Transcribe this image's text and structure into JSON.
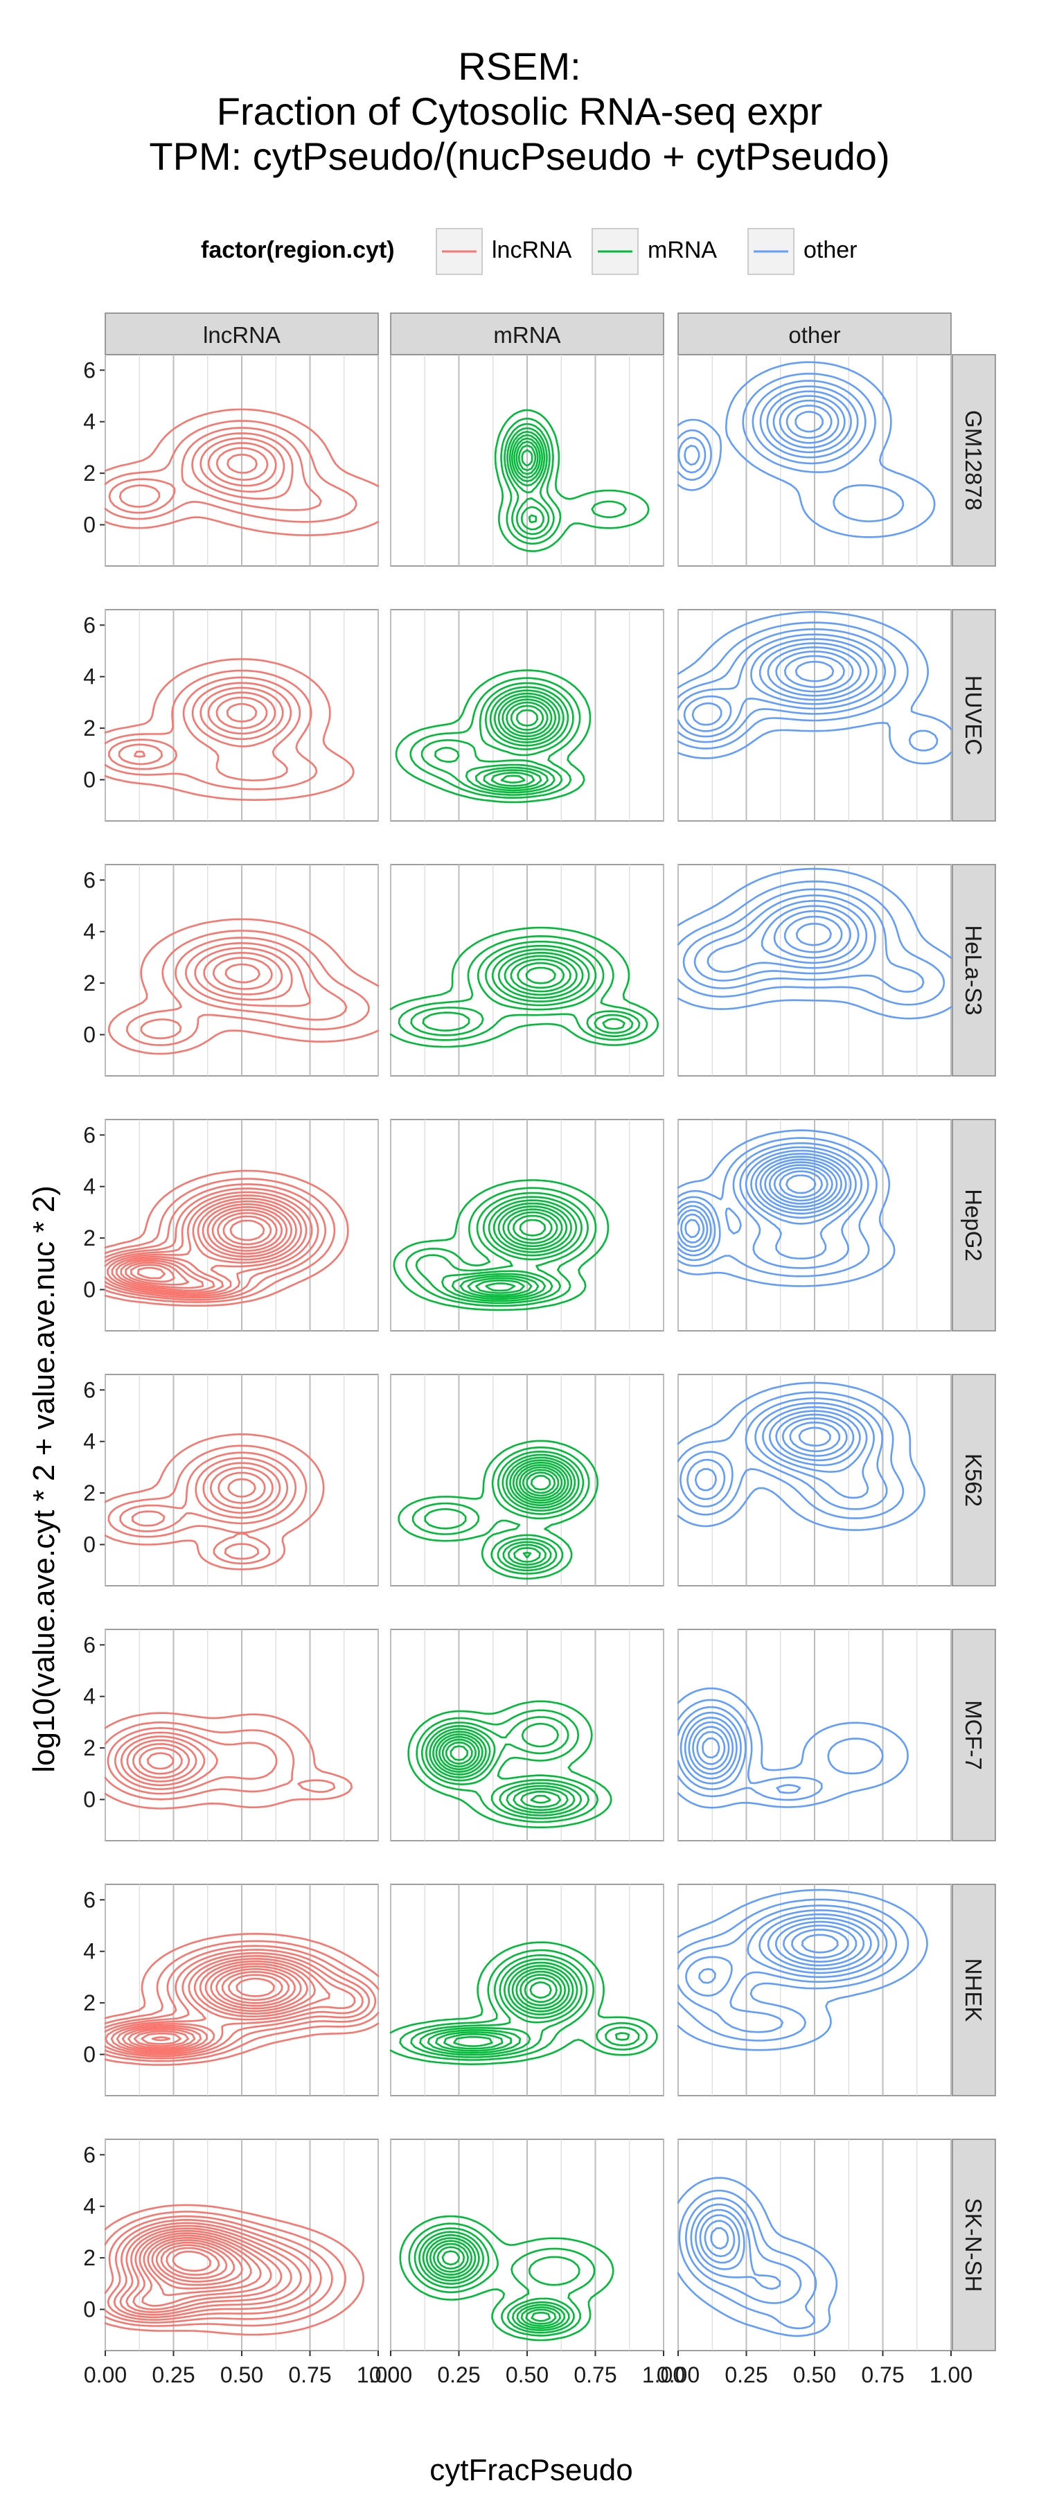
{
  "title_lines": [
    "RSEM:",
    "Fraction of Cytosolic RNA-seq expr",
    "TPM: cytPseudo/(nucPseudo + cytPseudo)"
  ],
  "legend": {
    "title": "factor(region.cyt)",
    "entries": [
      {
        "label": "lncRNA",
        "color": "#f8766d"
      },
      {
        "label": "mRNA",
        "color": "#00ba38"
      },
      {
        "label": "other",
        "color": "#619cff"
      }
    ]
  },
  "chart_data": {
    "type": "contour",
    "xlabel": "cytFracPseudo",
    "ylabel": "log10(value.ave.cyt * 2 + value.ave.nuc * 2)",
    "xlim": [
      0,
      1
    ],
    "ylim": [
      -1.6,
      6.6
    ],
    "xticks": [
      0,
      0.25,
      0.5,
      0.75,
      1
    ],
    "xtick_labels": [
      "0.00",
      "0.25",
      "0.50",
      "0.75",
      "1.00"
    ],
    "yticks": [
      0,
      2,
      4,
      6
    ],
    "ytick_labels": [
      "0",
      "2",
      "4",
      "6"
    ],
    "columns": [
      "lncRNA",
      "mRNA",
      "other"
    ],
    "rows": [
      "GM12878",
      "HUVEC",
      "HeLa-S3",
      "HepG2",
      "K562",
      "MCF-7",
      "NHEK",
      "SK-N-SH"
    ],
    "panels": {
      "GM12878": {
        "lncRNA": {
          "levels": 8,
          "modes": [
            {
              "x": 0.5,
              "y": 2.4,
              "sx": 0.14,
              "sy": 0.9,
              "w": 1
            },
            {
              "x": 0.12,
              "y": 1.1,
              "sx": 0.1,
              "sy": 0.6,
              "w": 0.55
            },
            {
              "x": 0.75,
              "y": 0.8,
              "sx": 0.18,
              "sy": 0.7,
              "w": 0.3
            }
          ]
        },
        "mRNA": {
          "levels": 10,
          "modes": [
            {
              "x": 0.5,
              "y": 2.6,
              "sx": 0.05,
              "sy": 0.8,
              "w": 1
            },
            {
              "x": 0.52,
              "y": 0.2,
              "sx": 0.06,
              "sy": 0.6,
              "w": 0.55
            },
            {
              "x": 0.8,
              "y": 0.6,
              "sx": 0.1,
              "sy": 0.5,
              "w": 0.2
            }
          ]
        },
        "other": {
          "levels": 9,
          "modes": [
            {
              "x": 0.48,
              "y": 4.0,
              "sx": 0.13,
              "sy": 1.0,
              "w": 1
            },
            {
              "x": 0.05,
              "y": 2.7,
              "sx": 0.05,
              "sy": 0.7,
              "w": 0.45
            },
            {
              "x": 0.7,
              "y": 0.8,
              "sx": 0.15,
              "sy": 0.8,
              "w": 0.25
            }
          ]
        }
      },
      "HUVEC": {
        "lncRNA": {
          "levels": 8,
          "modes": [
            {
              "x": 0.5,
              "y": 2.6,
              "sx": 0.14,
              "sy": 0.9,
              "w": 1
            },
            {
              "x": 0.12,
              "y": 1.0,
              "sx": 0.1,
              "sy": 0.5,
              "w": 0.55
            },
            {
              "x": 0.55,
              "y": 0.3,
              "sx": 0.2,
              "sy": 0.6,
              "w": 0.35
            }
          ]
        },
        "mRNA": {
          "levels": 11,
          "modes": [
            {
              "x": 0.5,
              "y": 2.4,
              "sx": 0.1,
              "sy": 0.8,
              "w": 1
            },
            {
              "x": 0.45,
              "y": 0.0,
              "sx": 0.12,
              "sy": 0.4,
              "w": 0.7
            },
            {
              "x": 0.2,
              "y": 1.0,
              "sx": 0.1,
              "sy": 0.6,
              "w": 0.35
            }
          ]
        },
        "other": {
          "levels": 10,
          "modes": [
            {
              "x": 0.5,
              "y": 4.2,
              "sx": 0.18,
              "sy": 1.0,
              "w": 1
            },
            {
              "x": 0.1,
              "y": 2.5,
              "sx": 0.1,
              "sy": 0.8,
              "w": 0.6
            },
            {
              "x": 0.9,
              "y": 1.5,
              "sx": 0.08,
              "sy": 0.6,
              "w": 0.2
            }
          ]
        }
      },
      "HeLa-S3": {
        "lncRNA": {
          "levels": 8,
          "modes": [
            {
              "x": 0.5,
              "y": 2.4,
              "sx": 0.16,
              "sy": 0.9,
              "w": 1
            },
            {
              "x": 0.2,
              "y": 0.2,
              "sx": 0.1,
              "sy": 0.5,
              "w": 0.4
            },
            {
              "x": 0.8,
              "y": 1.0,
              "sx": 0.15,
              "sy": 0.7,
              "w": 0.35
            }
          ]
        },
        "mRNA": {
          "levels": 10,
          "modes": [
            {
              "x": 0.55,
              "y": 2.3,
              "sx": 0.14,
              "sy": 0.8,
              "w": 1
            },
            {
              "x": 0.2,
              "y": 0.5,
              "sx": 0.12,
              "sy": 0.5,
              "w": 0.45
            },
            {
              "x": 0.82,
              "y": 0.4,
              "sx": 0.08,
              "sy": 0.4,
              "w": 0.5
            }
          ]
        },
        "other": {
          "levels": 9,
          "modes": [
            {
              "x": 0.5,
              "y": 3.9,
              "sx": 0.16,
              "sy": 1.1,
              "w": 1
            },
            {
              "x": 0.15,
              "y": 2.8,
              "sx": 0.12,
              "sy": 0.9,
              "w": 0.5
            },
            {
              "x": 0.85,
              "y": 2.0,
              "sx": 0.12,
              "sy": 0.8,
              "w": 0.3
            }
          ]
        }
      },
      "HepG2": {
        "lncRNA": {
          "levels": 14,
          "modes": [
            {
              "x": 0.52,
              "y": 2.3,
              "sx": 0.16,
              "sy": 1.0,
              "w": 1
            },
            {
              "x": 0.15,
              "y": 0.7,
              "sx": 0.12,
              "sy": 0.5,
              "w": 0.8
            },
            {
              "x": 0.35,
              "y": 0.1,
              "sx": 0.12,
              "sy": 0.35,
              "w": 0.45
            }
          ]
        },
        "mRNA": {
          "levels": 11,
          "modes": [
            {
              "x": 0.52,
              "y": 2.4,
              "sx": 0.12,
              "sy": 0.8,
              "w": 1
            },
            {
              "x": 0.4,
              "y": 0.1,
              "sx": 0.14,
              "sy": 0.4,
              "w": 0.8
            },
            {
              "x": 0.15,
              "y": 1.0,
              "sx": 0.08,
              "sy": 0.5,
              "w": 0.3
            }
          ]
        },
        "other": {
          "levels": 13,
          "modes": [
            {
              "x": 0.45,
              "y": 4.1,
              "sx": 0.14,
              "sy": 0.9,
              "w": 1
            },
            {
              "x": 0.05,
              "y": 2.4,
              "sx": 0.06,
              "sy": 0.8,
              "w": 0.6
            },
            {
              "x": 0.45,
              "y": 1.5,
              "sx": 0.2,
              "sy": 0.8,
              "w": 0.3
            }
          ]
        }
      },
      "K562": {
        "lncRNA": {
          "levels": 8,
          "modes": [
            {
              "x": 0.5,
              "y": 2.2,
              "sx": 0.13,
              "sy": 0.9,
              "w": 1
            },
            {
              "x": 0.15,
              "y": 1.0,
              "sx": 0.1,
              "sy": 0.5,
              "w": 0.5
            },
            {
              "x": 0.5,
              "y": -0.3,
              "sx": 0.08,
              "sy": 0.35,
              "w": 0.4
            }
          ]
        },
        "mRNA": {
          "levels": 12,
          "modes": [
            {
              "x": 0.55,
              "y": 2.4,
              "sx": 0.09,
              "sy": 0.7,
              "w": 1
            },
            {
              "x": 0.5,
              "y": -0.4,
              "sx": 0.08,
              "sy": 0.45,
              "w": 0.55
            },
            {
              "x": 0.2,
              "y": 1.0,
              "sx": 0.1,
              "sy": 0.5,
              "w": 0.3
            }
          ]
        },
        "other": {
          "levels": 10,
          "modes": [
            {
              "x": 0.5,
              "y": 4.2,
              "sx": 0.15,
              "sy": 0.9,
              "w": 1
            },
            {
              "x": 0.1,
              "y": 2.5,
              "sx": 0.08,
              "sy": 0.9,
              "w": 0.5
            },
            {
              "x": 0.65,
              "y": 2.0,
              "sx": 0.14,
              "sy": 0.8,
              "w": 0.35
            }
          ]
        }
      },
      "MCF-7": {
        "lncRNA": {
          "levels": 9,
          "modes": [
            {
              "x": 0.2,
              "y": 1.5,
              "sx": 0.12,
              "sy": 0.8,
              "w": 1
            },
            {
              "x": 0.55,
              "y": 1.5,
              "sx": 0.12,
              "sy": 1.0,
              "w": 0.35
            },
            {
              "x": 0.8,
              "y": 0.5,
              "sx": 0.07,
              "sy": 0.3,
              "w": 0.2
            }
          ]
        },
        "mRNA": {
          "levels": 11,
          "modes": [
            {
              "x": 0.25,
              "y": 1.8,
              "sx": 0.08,
              "sy": 0.7,
              "w": 1
            },
            {
              "x": 0.55,
              "y": 0.0,
              "sx": 0.12,
              "sy": 0.5,
              "w": 0.7
            },
            {
              "x": 0.55,
              "y": 2.5,
              "sx": 0.1,
              "sy": 0.7,
              "w": 0.4
            }
          ]
        },
        "other": {
          "levels": 9,
          "modes": [
            {
              "x": 0.12,
              "y": 2.0,
              "sx": 0.08,
              "sy": 1.0,
              "w": 1
            },
            {
              "x": 0.4,
              "y": 0.4,
              "sx": 0.1,
              "sy": 0.4,
              "w": 0.3
            },
            {
              "x": 0.65,
              "y": 1.7,
              "sx": 0.12,
              "sy": 0.8,
              "w": 0.25
            }
          ]
        }
      },
      "NHEK": {
        "lncRNA": {
          "levels": 14,
          "modes": [
            {
              "x": 0.55,
              "y": 2.6,
              "sx": 0.18,
              "sy": 0.9,
              "w": 1
            },
            {
              "x": 0.2,
              "y": 0.6,
              "sx": 0.15,
              "sy": 0.45,
              "w": 0.8
            },
            {
              "x": 0.9,
              "y": 2.0,
              "sx": 0.08,
              "sy": 0.6,
              "w": 0.3
            }
          ]
        },
        "mRNA": {
          "levels": 11,
          "modes": [
            {
              "x": 0.55,
              "y": 2.5,
              "sx": 0.1,
              "sy": 0.8,
              "w": 1
            },
            {
              "x": 0.3,
              "y": 0.5,
              "sx": 0.15,
              "sy": 0.4,
              "w": 0.75
            },
            {
              "x": 0.85,
              "y": 0.7,
              "sx": 0.07,
              "sy": 0.4,
              "w": 0.35
            }
          ]
        },
        "other": {
          "levels": 10,
          "modes": [
            {
              "x": 0.52,
              "y": 4.3,
              "sx": 0.17,
              "sy": 0.9,
              "w": 1
            },
            {
              "x": 0.1,
              "y": 3.0,
              "sx": 0.1,
              "sy": 0.9,
              "w": 0.45
            },
            {
              "x": 0.3,
              "y": 1.2,
              "sx": 0.15,
              "sy": 0.6,
              "w": 0.3
            }
          ]
        }
      },
      "SK-N-SH": {
        "lncRNA": {
          "levels": 16,
          "modes": [
            {
              "x": 0.28,
              "y": 2.0,
              "sx": 0.15,
              "sy": 0.9,
              "w": 1
            },
            {
              "x": 0.55,
              "y": 1.2,
              "sx": 0.2,
              "sy": 1.1,
              "w": 0.6
            },
            {
              "x": 0.15,
              "y": 0.2,
              "sx": 0.12,
              "sy": 0.5,
              "w": 0.5
            }
          ]
        },
        "mRNA": {
          "levels": 10,
          "modes": [
            {
              "x": 0.22,
              "y": 2.0,
              "sx": 0.08,
              "sy": 0.7,
              "w": 1
            },
            {
              "x": 0.55,
              "y": -0.3,
              "sx": 0.08,
              "sy": 0.4,
              "w": 0.8
            },
            {
              "x": 0.6,
              "y": 1.5,
              "sx": 0.12,
              "sy": 0.7,
              "w": 0.35
            }
          ]
        },
        "other": {
          "levels": 8,
          "modes": [
            {
              "x": 0.15,
              "y": 2.8,
              "sx": 0.08,
              "sy": 1.0,
              "w": 1
            },
            {
              "x": 0.35,
              "y": 1.0,
              "sx": 0.12,
              "sy": 0.9,
              "w": 0.45
            },
            {
              "x": 0.45,
              "y": -0.5,
              "sx": 0.06,
              "sy": 0.3,
              "w": 0.2
            }
          ]
        }
      }
    }
  }
}
